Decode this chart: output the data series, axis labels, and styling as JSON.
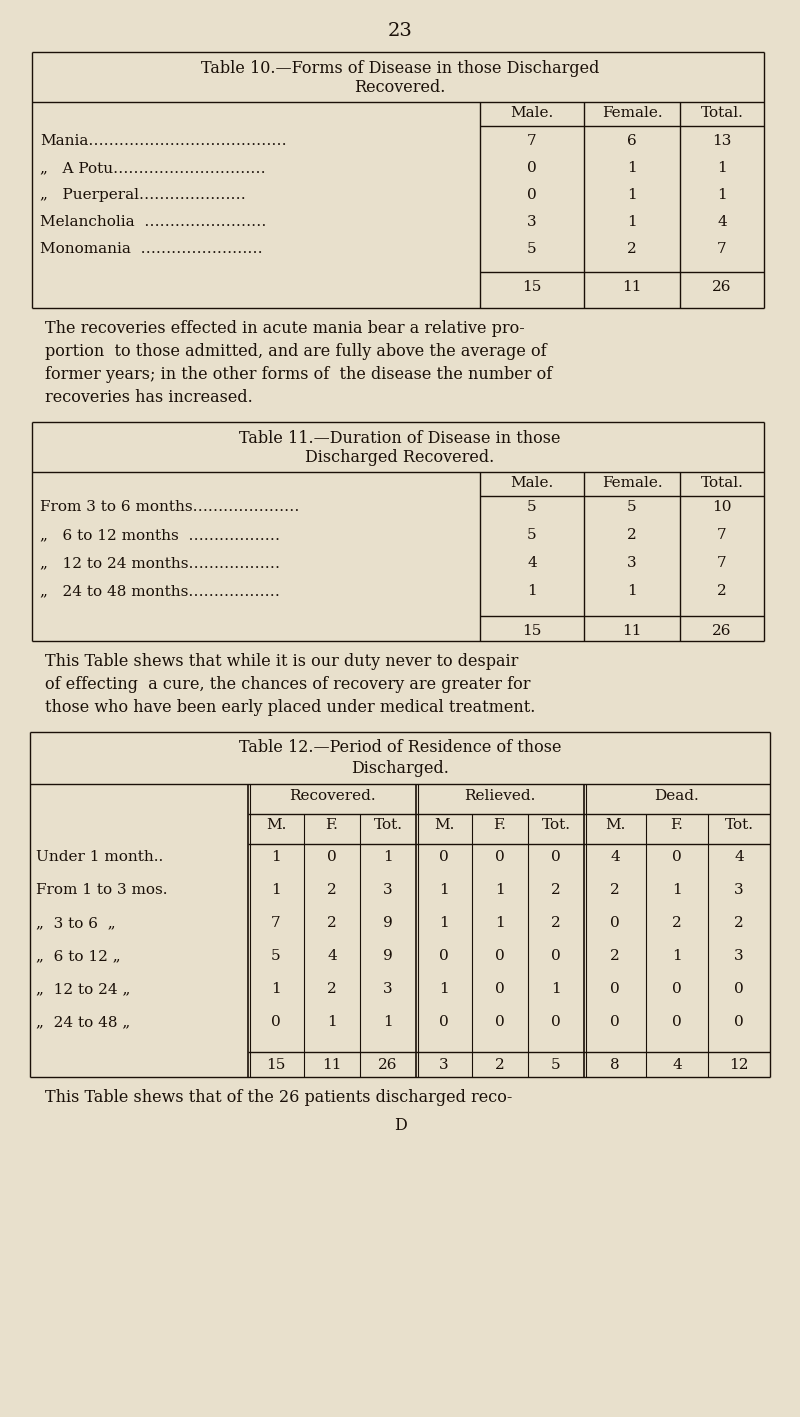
{
  "page_number": "23",
  "bg_color": "#e8e0cc",
  "text_color": "#1a1008",
  "table10": {
    "title_line1": "Table 10.—Forms of Disease in those Discharged",
    "title_line2": "Recovered.",
    "col_headers": [
      "Male.",
      "Female.",
      "Total."
    ],
    "rows": [
      [
        "Mania………………………………………",
        "7",
        "6",
        "13"
      ],
      [
        "„  A Potu………………………………",
        "0",
        "1",
        "1"
      ],
      [
        "„  Puerperal………………………",
        "0",
        "1",
        "1"
      ],
      [
        "Melancholia  ………………………",
        "3",
        "1",
        "4"
      ],
      [
        "Monomania  ………………………",
        "5",
        "2",
        "7"
      ]
    ],
    "totals": [
      "15",
      "11",
      "26"
    ]
  },
  "para1_lines": [
    "The recoveries effected in acute mania bear a relative pro-",
    "portion  to those admitted, and are fully above the average of",
    "former years; in the other forms of  the disease the number of",
    "recoveries has increased."
  ],
  "table11": {
    "title_line1": "Table 11.—Duration of Disease in those",
    "title_line2": "Discharged Recovered.",
    "col_headers": [
      "Male.",
      "Female.",
      "Total."
    ],
    "rows": [
      [
        "From 3 to 6 months……………………",
        "5",
        "5",
        "10"
      ],
      [
        "„  6 to 12 months  …………………",
        "5",
        "2",
        "7"
      ],
      [
        "„  12 to 24 months…………………",
        "4",
        "3",
        "7"
      ],
      [
        "„  24 to 48 months…………………",
        "1",
        "1",
        "2"
      ]
    ],
    "totals": [
      "15",
      "11",
      "26"
    ]
  },
  "para2_lines": [
    "This Table shews that while it is our duty never to despair",
    "of effecting  a cure, the chances of recovery are greater for",
    "those who have been early placed under medical treatment."
  ],
  "table12": {
    "title_line1": "Table 12.—Period of Residence of those",
    "title_line2": "Discharged.",
    "group_headers": [
      "Recovered.",
      "Relieved.",
      "Dead."
    ],
    "col_headers": [
      "M.",
      "F.",
      "Tot.",
      "M.",
      "F.",
      "Tot.",
      "M.",
      "F.",
      "Tot."
    ],
    "rows": [
      [
        "Under 1 month..",
        "1",
        "0",
        "1",
        "0",
        "0",
        "0",
        "4",
        "0",
        "4"
      ],
      [
        "From 1 to 3 mos.",
        "1",
        "2",
        "3",
        "1",
        "1",
        "2",
        "2",
        "1",
        "3"
      ],
      [
        "„  3 to 6  „",
        "7",
        "2",
        "9",
        "1",
        "1",
        "2",
        "0",
        "2",
        "2"
      ],
      [
        "„  6 to 12 „",
        "5",
        "4",
        "9",
        "0",
        "0",
        "0",
        "2",
        "1",
        "3"
      ],
      [
        "„  12 to 24 „",
        "1",
        "2",
        "3",
        "1",
        "0",
        "1",
        "0",
        "0",
        "0"
      ],
      [
        "„  24 to 48 „",
        "0",
        "1",
        "1",
        "0",
        "0",
        "0",
        "0",
        "0",
        "0"
      ]
    ],
    "totals": [
      "15",
      "11",
      "26",
      "3",
      "2",
      "5",
      "8",
      "4",
      "12"
    ]
  },
  "para3": "This Table shews that of the 26 patients discharged reco-",
  "footer": "D"
}
